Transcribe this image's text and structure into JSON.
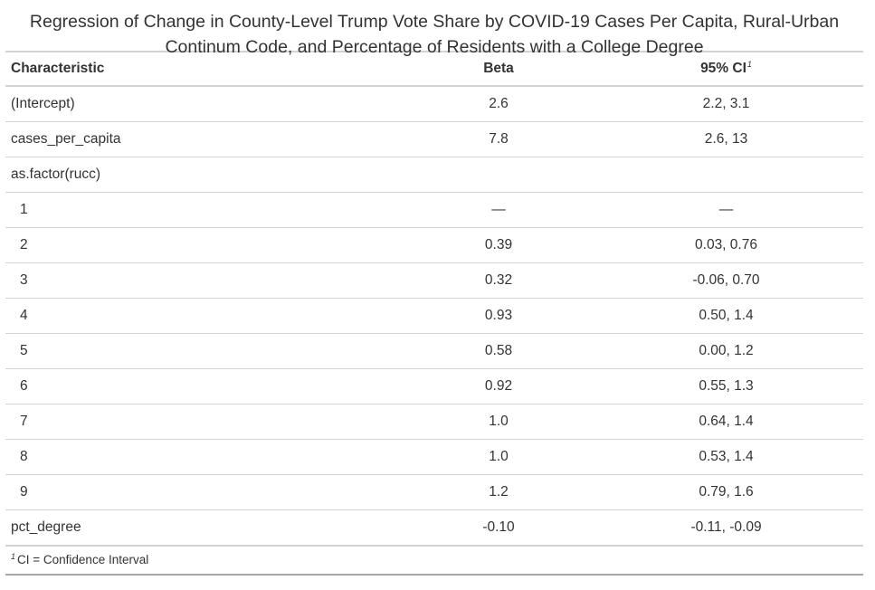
{
  "table": {
    "title": "Regression of Change in County-Level Trump Vote Share by COVID-19 Cases Per Capita, Rural-Urban Continum Code, and Percentage of Residents with a College Degree",
    "headers": {
      "characteristic": "Characteristic",
      "beta": "Beta",
      "ci": "95% CI",
      "ci_marker": "1"
    },
    "rows": [
      {
        "characteristic": "(Intercept)",
        "beta": "2.6",
        "ci": "2.2, 3.1",
        "indent": false
      },
      {
        "characteristic": "cases_per_capita",
        "beta": "7.8",
        "ci": "2.6, 13",
        "indent": false
      },
      {
        "characteristic": "as.factor(rucc)",
        "beta": "",
        "ci": "",
        "indent": false
      },
      {
        "characteristic": "1",
        "beta": "—",
        "ci": "—",
        "indent": true
      },
      {
        "characteristic": "2",
        "beta": "0.39",
        "ci": "0.03, 0.76",
        "indent": true
      },
      {
        "characteristic": "3",
        "beta": "0.32",
        "ci": "-0.06, 0.70",
        "indent": true
      },
      {
        "characteristic": "4",
        "beta": "0.93",
        "ci": "0.50, 1.4",
        "indent": true
      },
      {
        "characteristic": "5",
        "beta": "0.58",
        "ci": "0.00, 1.2",
        "indent": true
      },
      {
        "characteristic": "6",
        "beta": "0.92",
        "ci": "0.55, 1.3",
        "indent": true
      },
      {
        "characteristic": "7",
        "beta": "1.0",
        "ci": "0.64, 1.4",
        "indent": true
      },
      {
        "characteristic": "8",
        "beta": "1.0",
        "ci": "0.53, 1.4",
        "indent": true
      },
      {
        "characteristic": "9",
        "beta": "1.2",
        "ci": "0.79, 1.6",
        "indent": true
      },
      {
        "characteristic": "pct_degree",
        "beta": "-0.10",
        "ci": "-0.11, -0.09",
        "indent": false
      }
    ],
    "footnote": {
      "marker": "1",
      "text": "CI = Confidence Interval"
    }
  }
}
